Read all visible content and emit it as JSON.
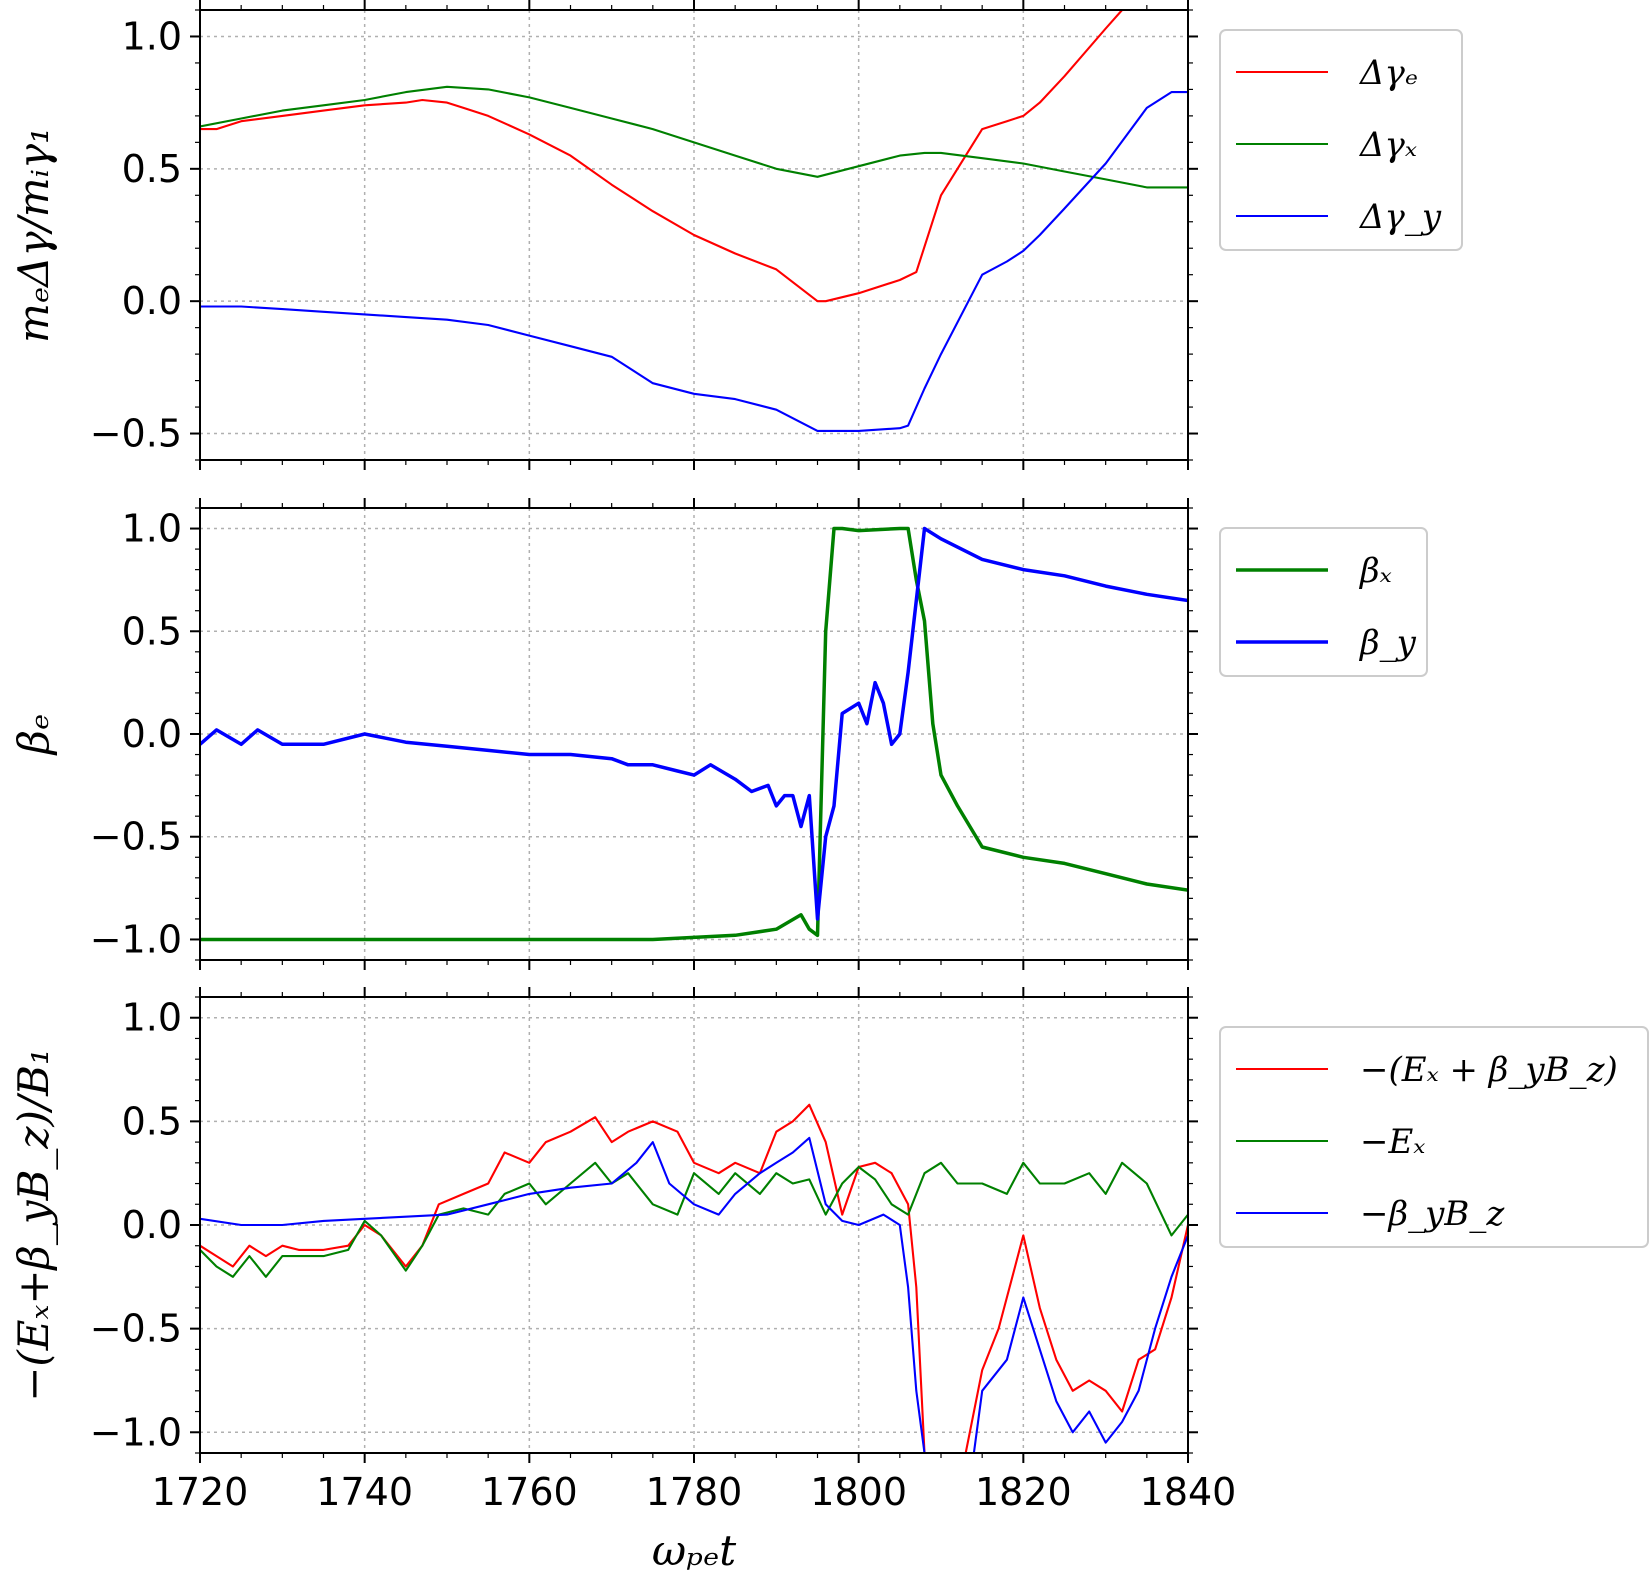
{
  "figure": {
    "xlabel": "ωₚₑt",
    "xticks": [
      "1720",
      "1740",
      "1760",
      "1780",
      "1800",
      "1820",
      "1840"
    ]
  },
  "chart_data": [
    {
      "type": "line",
      "ylabel": "mₑΔγ/mᵢγ₁",
      "xlim": [
        1720,
        1840
      ],
      "ylim": [
        -0.6,
        1.1
      ],
      "yticks": [
        "−0.5",
        "0.0",
        "0.5",
        "1.0"
      ],
      "grid": true,
      "legend_position": "outside right",
      "series": [
        {
          "name": "Δγₑ",
          "color": "#ff0000",
          "stroke": 1.5,
          "x": [
            1720,
            1722,
            1725,
            1730,
            1735,
            1740,
            1745,
            1747,
            1750,
            1752,
            1755,
            1760,
            1765,
            1770,
            1775,
            1780,
            1785,
            1790,
            1795,
            1796,
            1800,
            1805,
            1807,
            1810,
            1815,
            1818,
            1820,
            1822,
            1825,
            1830,
            1832
          ],
          "y": [
            0.65,
            0.65,
            0.68,
            0.7,
            0.72,
            0.74,
            0.75,
            0.76,
            0.75,
            0.73,
            0.7,
            0.63,
            0.55,
            0.44,
            0.34,
            0.25,
            0.18,
            0.12,
            0.0,
            0.0,
            0.03,
            0.08,
            0.11,
            0.4,
            0.65,
            0.68,
            0.7,
            0.75,
            0.85,
            1.03,
            1.1
          ]
        },
        {
          "name": "Δγₓ",
          "color": "#008000",
          "stroke": 1.5,
          "x": [
            1720,
            1725,
            1730,
            1735,
            1740,
            1745,
            1750,
            1755,
            1760,
            1765,
            1770,
            1775,
            1780,
            1785,
            1790,
            1795,
            1800,
            1805,
            1808,
            1810,
            1815,
            1820,
            1825,
            1830,
            1835,
            1840
          ],
          "y": [
            0.66,
            0.69,
            0.72,
            0.74,
            0.76,
            0.79,
            0.81,
            0.8,
            0.77,
            0.73,
            0.69,
            0.65,
            0.6,
            0.55,
            0.5,
            0.47,
            0.51,
            0.55,
            0.56,
            0.56,
            0.54,
            0.52,
            0.49,
            0.46,
            0.43,
            0.43
          ]
        },
        {
          "name": "Δγ_y",
          "color": "#0000ff",
          "stroke": 1.5,
          "x": [
            1720,
            1725,
            1730,
            1735,
            1740,
            1745,
            1750,
            1755,
            1760,
            1765,
            1770,
            1775,
            1780,
            1785,
            1790,
            1795,
            1800,
            1805,
            1806,
            1808,
            1810,
            1815,
            1818,
            1820,
            1822,
            1825,
            1830,
            1835,
            1838,
            1840
          ],
          "y": [
            -0.02,
            -0.02,
            -0.03,
            -0.04,
            -0.05,
            -0.06,
            -0.07,
            -0.09,
            -0.13,
            -0.17,
            -0.21,
            -0.31,
            -0.35,
            -0.37,
            -0.41,
            -0.49,
            -0.49,
            -0.48,
            -0.47,
            -0.33,
            -0.2,
            0.1,
            0.15,
            0.19,
            0.25,
            0.35,
            0.52,
            0.73,
            0.79,
            0.79
          ]
        }
      ]
    },
    {
      "type": "line",
      "ylabel": "βₑ",
      "xlim": [
        1720,
        1840
      ],
      "ylim": [
        -1.1,
        1.1
      ],
      "yticks": [
        "−1.0",
        "−0.5",
        "0.0",
        "0.5",
        "1.0"
      ],
      "grid": true,
      "legend_position": "outside right",
      "series": [
        {
          "name": "βₓ",
          "color": "#008000",
          "stroke": 2.5,
          "x": [
            1720,
            1740,
            1760,
            1775,
            1780,
            1785,
            1790,
            1793,
            1794,
            1795,
            1796,
            1797,
            1798,
            1800,
            1805,
            1806,
            1807,
            1808,
            1809,
            1810,
            1812,
            1815,
            1820,
            1825,
            1830,
            1835,
            1840
          ],
          "y": [
            -1.0,
            -1.0,
            -1.0,
            -1.0,
            -0.99,
            -0.98,
            -0.95,
            -0.88,
            -0.95,
            -0.98,
            0.5,
            1.0,
            1.0,
            0.99,
            1.0,
            1.0,
            0.75,
            0.55,
            0.05,
            -0.2,
            -0.35,
            -0.55,
            -0.6,
            -0.63,
            -0.68,
            -0.73,
            -0.76
          ]
        },
        {
          "name": "β_y",
          "color": "#0000ff",
          "stroke": 2.5,
          "x": [
            1720,
            1722,
            1725,
            1727,
            1730,
            1735,
            1740,
            1745,
            1750,
            1755,
            1760,
            1765,
            1770,
            1772,
            1775,
            1778,
            1780,
            1782,
            1785,
            1787,
            1789,
            1790,
            1791,
            1792,
            1793,
            1794,
            1795,
            1796,
            1797,
            1798,
            1800,
            1801,
            1802,
            1803,
            1804,
            1805,
            1806,
            1807,
            1808,
            1810,
            1815,
            1820,
            1825,
            1830,
            1835,
            1840
          ],
          "y": [
            -0.05,
            0.02,
            -0.05,
            0.02,
            -0.05,
            -0.05,
            0.0,
            -0.04,
            -0.06,
            -0.08,
            -0.1,
            -0.1,
            -0.12,
            -0.15,
            -0.15,
            -0.18,
            -0.2,
            -0.15,
            -0.22,
            -0.28,
            -0.25,
            -0.35,
            -0.3,
            -0.3,
            -0.45,
            -0.3,
            -0.9,
            -0.5,
            -0.35,
            0.1,
            0.15,
            0.05,
            0.25,
            0.15,
            -0.05,
            0.0,
            0.3,
            0.65,
            1.0,
            0.95,
            0.85,
            0.8,
            0.77,
            0.72,
            0.68,
            0.65
          ]
        }
      ]
    },
    {
      "type": "line",
      "ylabel": "−(Eₓ+β_yB_z)/B₁",
      "xlabel": "ωₚₑt",
      "xlim": [
        1720,
        1840
      ],
      "ylim": [
        -1.1,
        1.1
      ],
      "xticks": [
        1720,
        1740,
        1760,
        1780,
        1800,
        1820,
        1840
      ],
      "yticks": [
        "−1.0",
        "−0.5",
        "0.0",
        "0.5",
        "1.0"
      ],
      "grid": true,
      "legend_position": "outside right",
      "series": [
        {
          "name": "−(Eₓ + β_yB_z)",
          "color": "#ff0000",
          "stroke": 1.5,
          "x": [
            1720,
            1722,
            1724,
            1726,
            1728,
            1730,
            1732,
            1735,
            1738,
            1740,
            1742,
            1745,
            1747,
            1749,
            1752,
            1755,
            1757,
            1760,
            1762,
            1765,
            1768,
            1770,
            1772,
            1775,
            1778,
            1780,
            1783,
            1785,
            1788,
            1790,
            1792,
            1794,
            1796,
            1798,
            1800,
            1802,
            1804,
            1806,
            1807,
            1808,
            1813,
            1815,
            1817,
            1819,
            1820,
            1822,
            1824,
            1826,
            1828,
            1830,
            1832,
            1834,
            1836,
            1838,
            1840
          ],
          "y": [
            -0.1,
            -0.15,
            -0.2,
            -0.1,
            -0.15,
            -0.1,
            -0.12,
            -0.12,
            -0.1,
            0.0,
            -0.05,
            -0.2,
            -0.1,
            0.1,
            0.15,
            0.2,
            0.35,
            0.3,
            0.4,
            0.45,
            0.52,
            0.4,
            0.45,
            0.5,
            0.45,
            0.3,
            0.25,
            0.3,
            0.25,
            0.45,
            0.5,
            0.58,
            0.4,
            0.05,
            0.28,
            0.3,
            0.25,
            0.1,
            -0.3,
            -1.1,
            -1.1,
            -0.7,
            -0.5,
            -0.2,
            -0.05,
            -0.4,
            -0.65,
            -0.8,
            -0.75,
            -0.8,
            -0.9,
            -0.65,
            -0.6,
            -0.35,
            0.0
          ]
        },
        {
          "name": "−Eₓ",
          "color": "#008000",
          "stroke": 1.5,
          "x": [
            1720,
            1722,
            1724,
            1726,
            1728,
            1730,
            1732,
            1735,
            1738,
            1740,
            1742,
            1745,
            1747,
            1749,
            1752,
            1755,
            1757,
            1760,
            1762,
            1765,
            1768,
            1770,
            1772,
            1775,
            1778,
            1780,
            1783,
            1785,
            1788,
            1790,
            1792,
            1794,
            1796,
            1798,
            1800,
            1802,
            1804,
            1806,
            1808,
            1810,
            1812,
            1815,
            1818,
            1820,
            1822,
            1825,
            1828,
            1830,
            1832,
            1835,
            1838,
            1840
          ],
          "y": [
            -0.12,
            -0.2,
            -0.25,
            -0.15,
            -0.25,
            -0.15,
            -0.15,
            -0.15,
            -0.12,
            0.02,
            -0.05,
            -0.22,
            -0.1,
            0.05,
            0.08,
            0.05,
            0.15,
            0.2,
            0.1,
            0.2,
            0.3,
            0.2,
            0.25,
            0.1,
            0.05,
            0.25,
            0.15,
            0.25,
            0.15,
            0.25,
            0.2,
            0.22,
            0.05,
            0.2,
            0.28,
            0.22,
            0.1,
            0.05,
            0.25,
            0.3,
            0.2,
            0.2,
            0.15,
            0.3,
            0.2,
            0.2,
            0.25,
            0.15,
            0.3,
            0.2,
            -0.05,
            0.05
          ]
        },
        {
          "name": "−β_yB_z",
          "color": "#0000ff",
          "stroke": 1.5,
          "x": [
            1720,
            1725,
            1730,
            1735,
            1740,
            1745,
            1750,
            1755,
            1760,
            1765,
            1770,
            1773,
            1775,
            1777,
            1780,
            1783,
            1785,
            1788,
            1790,
            1792,
            1794,
            1796,
            1798,
            1800,
            1803,
            1805,
            1806,
            1807,
            1808,
            1814,
            1815,
            1818,
            1820,
            1822,
            1824,
            1826,
            1828,
            1830,
            1832,
            1834,
            1836,
            1838,
            1840
          ],
          "y": [
            0.03,
            0.0,
            0.0,
            0.02,
            0.03,
            0.04,
            0.05,
            0.1,
            0.15,
            0.18,
            0.2,
            0.3,
            0.4,
            0.2,
            0.1,
            0.05,
            0.15,
            0.25,
            0.3,
            0.35,
            0.42,
            0.1,
            0.02,
            0.0,
            0.05,
            0.0,
            -0.3,
            -0.8,
            -1.1,
            -1.1,
            -0.8,
            -0.65,
            -0.35,
            -0.6,
            -0.85,
            -1.0,
            -0.9,
            -1.05,
            -0.95,
            -0.8,
            -0.5,
            -0.25,
            -0.05
          ]
        }
      ]
    }
  ]
}
